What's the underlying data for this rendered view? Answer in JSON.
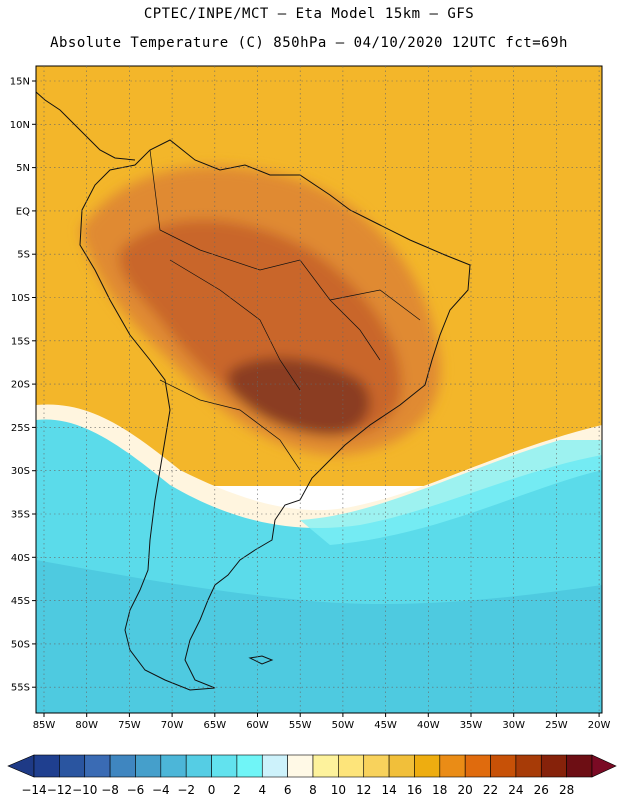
{
  "header": {
    "line1": "CPTEC/INPE/MCT –  Eta Model 15km – GFS",
    "line2": "Absolute Temperature (C) 850hPa – 04/10/2020 12UTC fct=69h"
  },
  "axes": {
    "lat_labels": [
      "15N",
      "10N",
      "5N",
      "EQ",
      "5S",
      "10S",
      "15S",
      "20S",
      "25S",
      "30S",
      "35S",
      "40S",
      "45S",
      "50S",
      "55S"
    ],
    "lon_labels": [
      "85W",
      "80W",
      "75W",
      "70W",
      "65W",
      "60W",
      "55W",
      "50W",
      "45W",
      "40W",
      "35W",
      "30W",
      "25W",
      "20W"
    ]
  },
  "colorbar": {
    "tick_labels": [
      "-14",
      "-12",
      "-10",
      "-8",
      "-6",
      "-4",
      "-2",
      "0",
      "2",
      "4",
      "6",
      "8",
      "10",
      "12",
      "14",
      "16",
      "18",
      "20",
      "22",
      "24",
      "26",
      "28"
    ],
    "colors": [
      "#1f3f8f",
      "#2a55a0",
      "#3a6bb4",
      "#3f86c0",
      "#459fcb",
      "#4cb6d8",
      "#55cde4",
      "#62e2ee",
      "#70f5f7",
      "#cdf2fb",
      "#fff9e6",
      "#fdf29c",
      "#fde47a",
      "#f8d25c",
      "#f1bf3a",
      "#eead10",
      "#ea8c16",
      "#e06b0d",
      "#c75107",
      "#a73b07",
      "#86220a",
      "#6d0e14"
    ],
    "under_color": "#1e3a86",
    "over_color": "#7a0a24"
  },
  "field_colors": {
    "ocean_cold": "#5bdbea",
    "ocean_cold_deep": "#48c3dc",
    "ocean_cool": "#7cf0f6",
    "pale": "#fff5df",
    "warm": "#f3b62a",
    "warmer": "#eea012",
    "hot": "#e08a30",
    "hotter": "#c9662a",
    "hottest": "#8b3d22",
    "coast": "#111111"
  }
}
